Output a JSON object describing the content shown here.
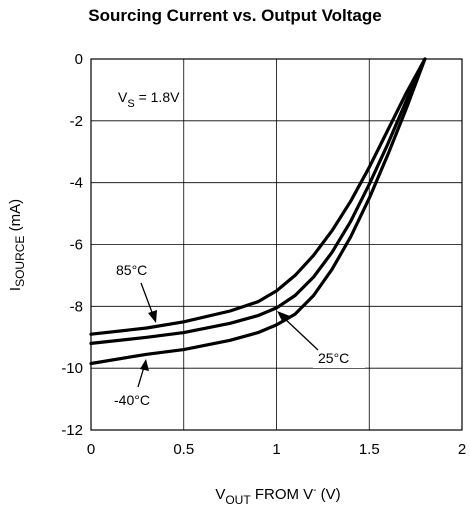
{
  "chart_data": {
    "type": "line",
    "title": "Sourcing Current vs. Output Voltage",
    "xlabel": {
      "main": "V",
      "sub": "OUT",
      "rest": " FROM V",
      "sup": "-",
      "unit": " (V)"
    },
    "ylabel": {
      "main": "I",
      "sub": "SOURCE",
      "unit": " (mA)"
    },
    "xlim": [
      0,
      2
    ],
    "ylim": [
      -12,
      0
    ],
    "xticks": [
      0,
      0.5,
      1,
      1.5,
      2
    ],
    "xtick_labels": [
      "0",
      "0.5",
      "1",
      "1.5",
      "2"
    ],
    "yticks": [
      0,
      -2,
      -4,
      -6,
      -8,
      -10,
      -12
    ],
    "ytick_labels": [
      "0",
      "-2",
      "-4",
      "-6",
      "-8",
      "-10",
      "-12"
    ],
    "grid": true,
    "condition": {
      "main": "V",
      "sub": "S",
      "rest": " = 1.8V"
    },
    "series": [
      {
        "name": "85°C",
        "x": [
          0,
          0.3,
          0.5,
          0.75,
          0.9,
          1.0,
          1.1,
          1.2,
          1.3,
          1.4,
          1.5,
          1.6,
          1.7,
          1.8
        ],
        "y": [
          -8.9,
          -8.7,
          -8.5,
          -8.15,
          -7.85,
          -7.5,
          -7.0,
          -6.35,
          -5.55,
          -4.6,
          -3.5,
          -2.3,
          -1.1,
          0
        ]
      },
      {
        "name": "25°C",
        "x": [
          0,
          0.3,
          0.5,
          0.75,
          0.9,
          1.0,
          1.1,
          1.2,
          1.3,
          1.4,
          1.5,
          1.6,
          1.7,
          1.8
        ],
        "y": [
          -9.2,
          -9.0,
          -8.85,
          -8.55,
          -8.3,
          -8.05,
          -7.65,
          -7.05,
          -6.25,
          -5.25,
          -4.05,
          -2.75,
          -1.35,
          0
        ]
      },
      {
        "name": "-40°C",
        "x": [
          0,
          0.3,
          0.5,
          0.75,
          0.9,
          1.0,
          1.1,
          1.2,
          1.3,
          1.4,
          1.5,
          1.6,
          1.7,
          1.8
        ],
        "y": [
          -9.85,
          -9.55,
          -9.4,
          -9.1,
          -8.85,
          -8.6,
          -8.25,
          -7.65,
          -6.8,
          -5.75,
          -4.5,
          -3.1,
          -1.6,
          0
        ]
      }
    ],
    "labels": [
      "85°C",
      "25°C",
      "-40°C"
    ]
  }
}
